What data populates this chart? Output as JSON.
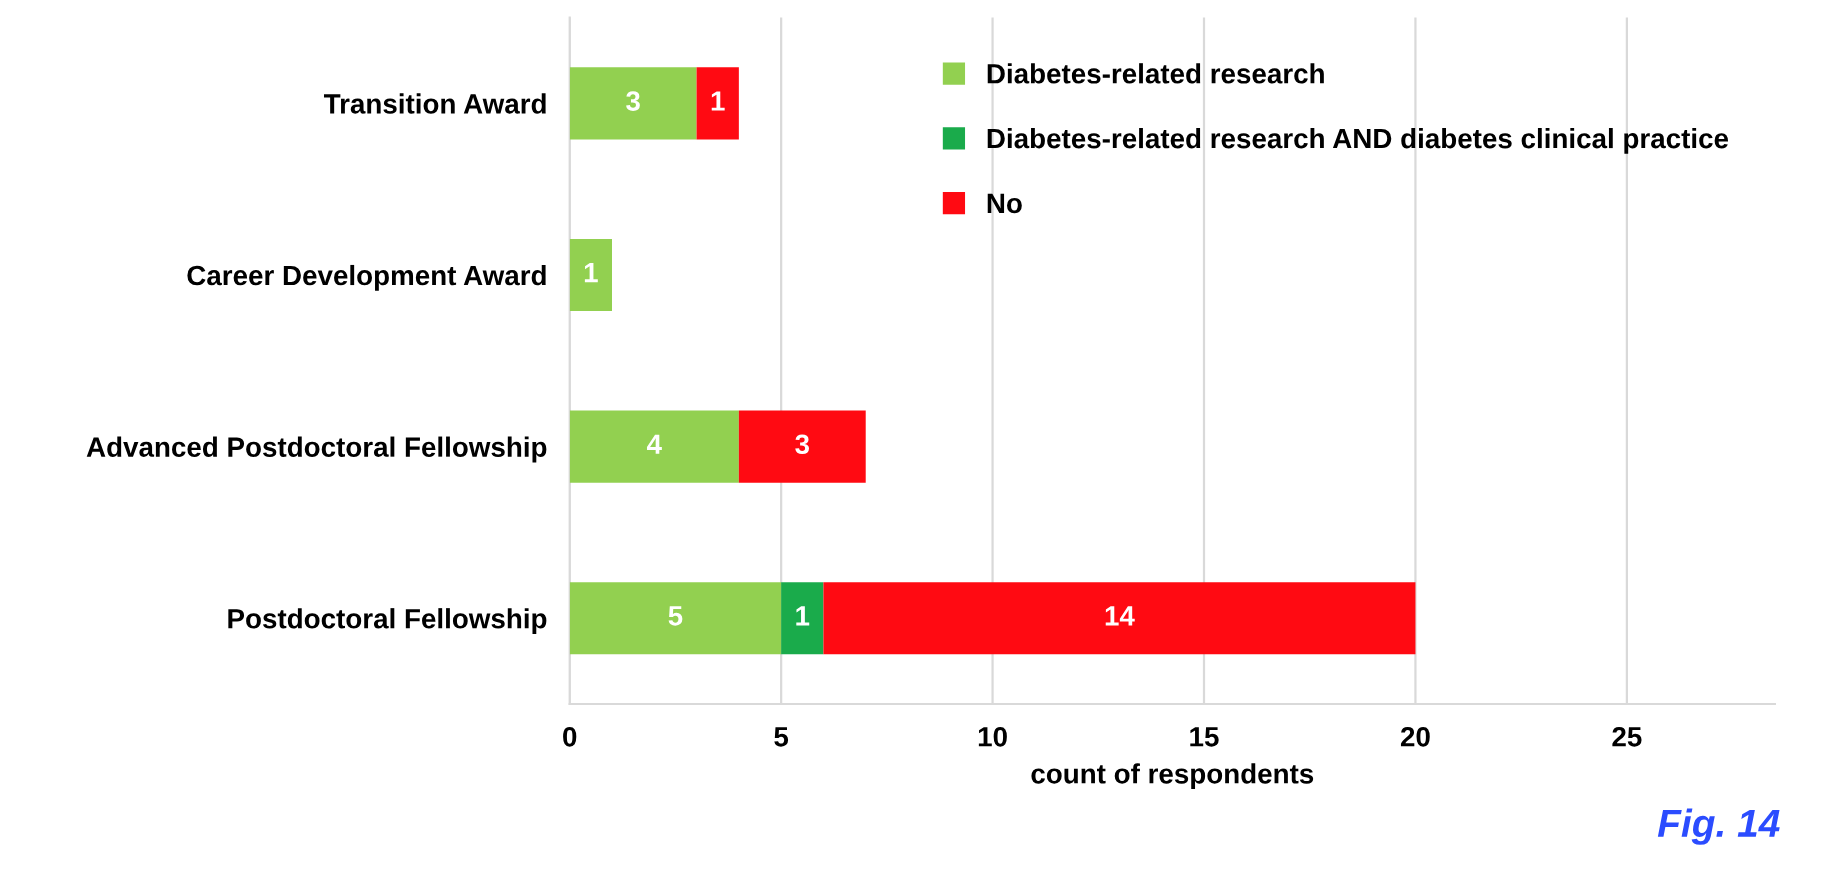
{
  "chart_data": {
    "type": "bar",
    "orientation": "horizontal",
    "stacked": true,
    "categories": [
      "Transition Award",
      "Career Development Award",
      "Advanced Postdoctoral Fellowship",
      "Postdoctoral Fellowship"
    ],
    "series": [
      {
        "name": "Diabetes-related research",
        "color": "#92d050",
        "values": [
          3,
          1,
          4,
          5
        ]
      },
      {
        "name": "Diabetes-related research AND diabetes clinical practice",
        "color": "#1aab4b",
        "values": [
          null,
          null,
          null,
          1
        ]
      },
      {
        "name": "No",
        "color": "#ff0a12",
        "values": [
          1,
          null,
          3,
          14
        ]
      }
    ],
    "xlabel": "count of respondents",
    "xlim": [
      0,
      28.5
    ],
    "xticks": [
      0,
      5,
      10,
      15,
      20,
      25
    ],
    "grid": "x",
    "legend": "top right",
    "data_labels": true,
    "annotations": [
      "Fig. 14"
    ]
  }
}
